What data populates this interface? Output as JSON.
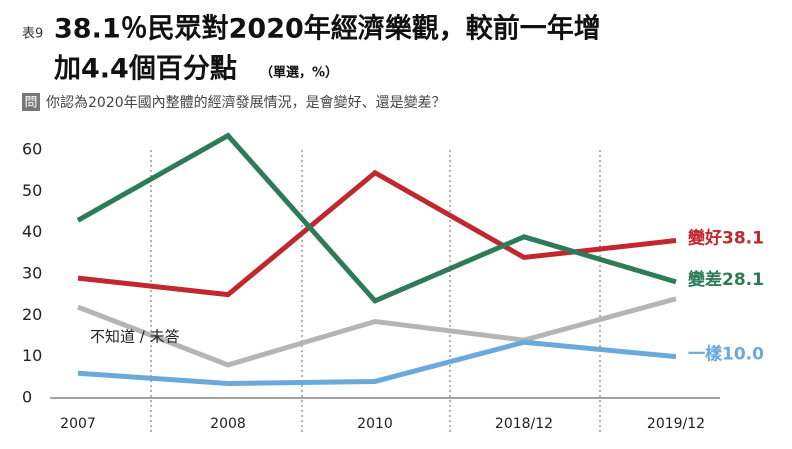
{
  "chart_data": {
    "type": "line",
    "figure_label": "表9",
    "title_lines": [
      "38.1％民眾對2020年經濟樂觀，較前一年增",
      "加4.4個百分點"
    ],
    "title_note": "（單選，%）",
    "question_mark": "問",
    "subtitle": "你認為2020年國內整體的經濟發展情況，是會變好、還是變差？",
    "categories": [
      "2007",
      "2008",
      "2010",
      "2018/12",
      "2019/12"
    ],
    "series": [
      {
        "name": "變好",
        "color": "#c1272d",
        "values": [
          29,
          25,
          54.5,
          34,
          38.1
        ],
        "value_labels": [
          null,
          null,
          null,
          null,
          "38.1"
        ]
      },
      {
        "name": "變差",
        "color": "#2e7b59",
        "values": [
          43,
          63.5,
          23.5,
          39,
          28.1
        ],
        "value_labels": [
          null,
          null,
          null,
          null,
          "28.1"
        ]
      },
      {
        "name": "不知道 / 未答",
        "color": "#b5b5b5",
        "values": [
          22,
          8,
          18.5,
          14,
          24
        ]
      },
      {
        "name": "一樣",
        "color": "#6aa9da",
        "values": [
          6,
          3.5,
          4,
          13.5,
          10
        ],
        "value_labels": [
          null,
          null,
          null,
          null,
          "10.0"
        ]
      }
    ],
    "ylim": [
      0,
      60
    ],
    "yticks": [
      0,
      10,
      20,
      30,
      40,
      50,
      60
    ]
  }
}
